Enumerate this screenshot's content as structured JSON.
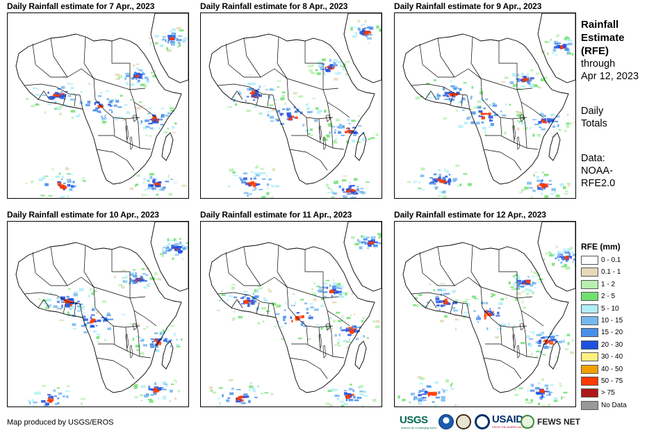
{
  "panels": [
    {
      "title": "Daily Rainfall estimate for 7 Apr., 2023",
      "seed": 7
    },
    {
      "title": "Daily Rainfall estimate for 8 Apr., 2023",
      "seed": 8
    },
    {
      "title": "Daily Rainfall estimate for 9 Apr., 2023",
      "seed": 9
    },
    {
      "title": "Daily Rainfall estimate for 10 Apr., 2023",
      "seed": 10
    },
    {
      "title": "Daily Rainfall estimate for 11 Apr., 2023",
      "seed": 11
    },
    {
      "title": "Daily Rainfall estimate for 12 Apr., 2023",
      "seed": 12
    }
  ],
  "side": {
    "title_line1": "Rainfall",
    "title_line2": "Estimate",
    "title_line3": "(RFE)",
    "through_line1": "through",
    "through_line2": "Apr 12, 2023",
    "daily_line1": "Daily",
    "daily_line2": "Totals",
    "data_line1": "Data:",
    "data_line2": "NOAA-",
    "data_line3": "RFE2.0"
  },
  "legend": {
    "title": "RFE (mm)",
    "items": [
      {
        "label": "0 - 0.1",
        "color": "#ffffff"
      },
      {
        "label": "0.1 - 1",
        "color": "#e8d8b8"
      },
      {
        "label": "1 - 2",
        "color": "#b8f0b0"
      },
      {
        "label": "2 - 5",
        "color": "#70e070"
      },
      {
        "label": "5 - 10",
        "color": "#b0eef8"
      },
      {
        "label": "10 - 15",
        "color": "#78b8f0"
      },
      {
        "label": "15 - 20",
        "color": "#4a90ea"
      },
      {
        "label": "20 - 30",
        "color": "#1e50e0"
      },
      {
        "label": "30 - 40",
        "color": "#fff080"
      },
      {
        "label": "40 - 50",
        "color": "#f0a000"
      },
      {
        "label": "50 - 75",
        "color": "#ff3a00"
      },
      {
        "label": "> 75",
        "color": "#b01818"
      },
      {
        "label": "No Data",
        "color": "#999999"
      }
    ]
  },
  "credit": "Map produced by USGS/EROS",
  "logos": {
    "usgs": "USGS",
    "usgs_tagline": "science for a changing world",
    "usaid": "USAID",
    "usaid_tagline": "FROM THE AMERICAN PEOPLE",
    "fews": "FEWS NET"
  }
}
